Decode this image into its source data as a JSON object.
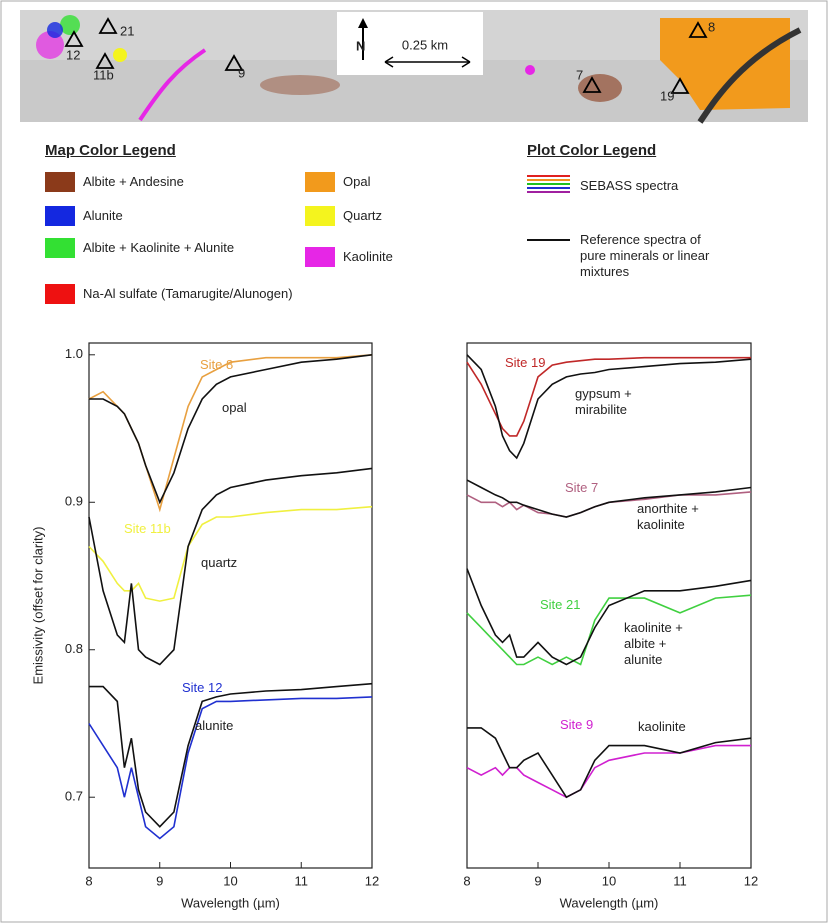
{
  "map": {
    "sites": [
      "21",
      "12",
      "11b",
      "9",
      "7",
      "8",
      "19"
    ],
    "north": "N",
    "scale": "0.25 km"
  },
  "map_legend": {
    "title": "Map Color Legend",
    "items": [
      {
        "label": "Albite + Andesine",
        "color": "#8b3a1a"
      },
      {
        "label": "Alunite",
        "color": "#1428e0"
      },
      {
        "label": "Albite + Kaolinite + Alunite",
        "color": "#33e033"
      },
      {
        "label": "Na-Al sulfate (Tamarugite/Alunogen)",
        "color": "#ee1111"
      },
      {
        "label": "Opal",
        "color": "#f29a1c"
      },
      {
        "label": "Quartz",
        "color": "#f4f41e"
      },
      {
        "label": "Kaolinite",
        "color": "#e626e6"
      }
    ]
  },
  "plot_legend": {
    "title": "Plot Color Legend",
    "items": [
      {
        "label": "SEBASS spectra",
        "colors": [
          "#e02020",
          "#f09020",
          "#20c020",
          "#2030d0",
          "#a020a0"
        ]
      },
      {
        "label": "Reference spectra of pure minerals or linear mixtures",
        "colors": [
          "#111111"
        ]
      }
    ]
  },
  "chart_data": [
    {
      "type": "line",
      "ylabel": "Emissivity (offset for clarity)",
      "xlabel": "Wavelength (µm)",
      "x": [
        8,
        8.2,
        8.4,
        8.5,
        8.6,
        8.7,
        8.8,
        9,
        9.2,
        9.4,
        9.6,
        9.8,
        10,
        10.5,
        11,
        11.5,
        12
      ],
      "xlim": [
        8,
        12
      ],
      "xticks": [
        8,
        9,
        10,
        11,
        12
      ],
      "ylim": [
        0.652,
        1.008
      ],
      "yticks": [
        {
          "value": 1,
          "label": "1.0"
        },
        0.9,
        0.8,
        0.7
      ],
      "series": [
        {
          "name": "Site 8",
          "color": "#e8a040",
          "values": [
            0.97,
            0.975,
            0.965,
            0.96,
            0.95,
            0.94,
            0.925,
            0.895,
            0.93,
            0.965,
            0.985,
            0.99,
            0.995,
            0.998,
            0.998,
            0.998,
            1.0
          ]
        },
        {
          "name": "opal",
          "color": "#111111",
          "values": [
            0.97,
            0.97,
            0.965,
            0.96,
            0.95,
            0.94,
            0.925,
            0.9,
            0.92,
            0.95,
            0.97,
            0.98,
            0.985,
            0.99,
            0.995,
            0.997,
            1.0
          ]
        },
        {
          "name": "Site 11b",
          "color": "#f0f040",
          "values": [
            0.87,
            0.86,
            0.845,
            0.84,
            0.84,
            0.845,
            0.835,
            0.833,
            0.835,
            0.87,
            0.885,
            0.89,
            0.89,
            0.893,
            0.895,
            0.895,
            0.897
          ]
        },
        {
          "name": "quartz",
          "color": "#111111",
          "values": [
            0.89,
            0.84,
            0.81,
            0.805,
            0.845,
            0.8,
            0.795,
            0.79,
            0.8,
            0.87,
            0.895,
            0.905,
            0.91,
            0.915,
            0.918,
            0.92,
            0.923
          ]
        },
        {
          "name": "Site 12",
          "color": "#2030d0",
          "values": [
            0.75,
            0.735,
            0.72,
            0.7,
            0.72,
            0.7,
            0.68,
            0.672,
            0.68,
            0.73,
            0.76,
            0.765,
            0.765,
            0.766,
            0.767,
            0.767,
            0.768
          ]
        },
        {
          "name": "alunite",
          "color": "#111111",
          "values": [
            0.775,
            0.775,
            0.765,
            0.72,
            0.74,
            0.705,
            0.69,
            0.68,
            0.69,
            0.735,
            0.765,
            0.768,
            0.77,
            0.772,
            0.773,
            0.775,
            0.777
          ]
        }
      ]
    },
    {
      "type": "line",
      "xlabel": "Wavelength (µm)",
      "x": [
        8,
        8.2,
        8.4,
        8.5,
        8.6,
        8.7,
        8.8,
        9,
        9.2,
        9.4,
        9.6,
        9.8,
        10,
        10.5,
        11,
        11.5,
        12
      ],
      "xlim": [
        8,
        12
      ],
      "xticks": [
        8,
        9,
        10,
        11,
        12
      ],
      "ylim": [
        0.652,
        1.008
      ],
      "series": [
        {
          "name": "Site 19",
          "color": "#c02828",
          "values": [
            0.995,
            0.98,
            0.96,
            0.95,
            0.945,
            0.945,
            0.955,
            0.985,
            0.993,
            0.995,
            0.996,
            0.997,
            0.997,
            0.998,
            0.998,
            0.998,
            0.998
          ]
        },
        {
          "name": "gypsum + mirabilite",
          "color": "#111111",
          "values": [
            1.0,
            0.99,
            0.965,
            0.945,
            0.935,
            0.93,
            0.94,
            0.97,
            0.98,
            0.985,
            0.987,
            0.988,
            0.99,
            0.992,
            0.994,
            0.995,
            0.997
          ]
        },
        {
          "name": "Site 7",
          "color": "#b06080",
          "values": [
            0.905,
            0.9,
            0.9,
            0.897,
            0.9,
            0.895,
            0.898,
            0.893,
            0.892,
            0.89,
            0.893,
            0.897,
            0.9,
            0.902,
            0.905,
            0.905,
            0.907
          ]
        },
        {
          "name": "anorthite + kaolinite",
          "color": "#111111",
          "values": [
            0.915,
            0.91,
            0.905,
            0.903,
            0.9,
            0.9,
            0.898,
            0.895,
            0.892,
            0.89,
            0.893,
            0.897,
            0.9,
            0.903,
            0.905,
            0.907,
            0.91
          ]
        },
        {
          "name": "Site 21",
          "color": "#40d040",
          "values": [
            0.825,
            0.815,
            0.805,
            0.8,
            0.795,
            0.79,
            0.79,
            0.795,
            0.79,
            0.795,
            0.79,
            0.82,
            0.835,
            0.835,
            0.825,
            0.835,
            0.837
          ]
        },
        {
          "name": "kaolinite + albite + alunite",
          "color": "#111111",
          "values": [
            0.855,
            0.83,
            0.81,
            0.805,
            0.81,
            0.795,
            0.795,
            0.805,
            0.795,
            0.79,
            0.795,
            0.815,
            0.83,
            0.84,
            0.84,
            0.843,
            0.847
          ]
        },
        {
          "name": "Site 9",
          "color": "#d020d0",
          "values": [
            0.72,
            0.715,
            0.72,
            0.715,
            0.72,
            0.72,
            0.715,
            0.71,
            0.705,
            0.7,
            0.705,
            0.72,
            0.725,
            0.73,
            0.73,
            0.735,
            0.735
          ]
        },
        {
          "name": "kaolinite",
          "color": "#111111",
          "values": [
            0.747,
            0.747,
            0.74,
            0.73,
            0.72,
            0.72,
            0.725,
            0.73,
            0.715,
            0.7,
            0.705,
            0.725,
            0.735,
            0.735,
            0.73,
            0.737,
            0.74
          ]
        }
      ]
    }
  ]
}
